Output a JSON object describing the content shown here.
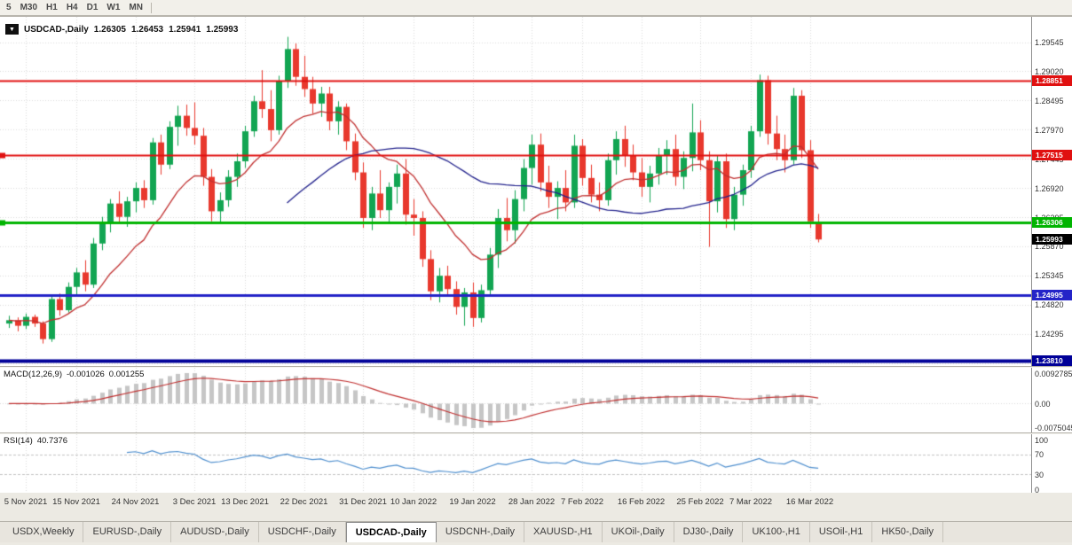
{
  "toolbar": {
    "timeframes": [
      "5",
      "M30",
      "H1",
      "H4",
      "D1",
      "W1",
      "MN"
    ]
  },
  "chart": {
    "info": {
      "symbol": "USDCAD-,Daily",
      "open": "1.26305",
      "high": "1.26453",
      "low": "1.25941",
      "close": "1.25993"
    },
    "price_axis_labels": [
      "1.29545",
      "1.29020",
      "1.28495",
      "1.27970",
      "1.27445",
      "1.26920",
      "1.26395",
      "1.25870",
      "1.25345",
      "1.24820",
      "1.24295",
      "1.23770"
    ],
    "hlines": [
      {
        "value": 1.28851,
        "label": "1.28851",
        "color": "#e01010",
        "width": 2,
        "handle": false
      },
      {
        "value": 1.27515,
        "label": "1.27515",
        "color": "#e01010",
        "width": 2,
        "handle": true
      },
      {
        "value": 1.26306,
        "label": "1.26306",
        "color": "#00b400",
        "width": 3,
        "handle": true
      },
      {
        "value": 1.24995,
        "label": "1.24995",
        "color": "#2424c8",
        "width": 3,
        "handle": false
      },
      {
        "value": 1.2381,
        "label": "1.23810",
        "color": "#000098",
        "width": 4,
        "handle": false
      }
    ],
    "current_price": {
      "value": 1.25993,
      "label": "1.25993",
      "bg": "#000000"
    },
    "colors": {
      "up": "#12a552",
      "down": "#e8382d",
      "ma_fast": "#c03030",
      "ma_slow": "#22228c",
      "grid": "#dadada"
    }
  },
  "chart_data": {
    "type": "candlestick",
    "title": "USDCAD-,Daily",
    "y_range": [
      1.237,
      1.3
    ],
    "x_labels": [
      {
        "index": 2,
        "label": "5 Nov 2021"
      },
      {
        "index": 8,
        "label": "15 Nov 2021"
      },
      {
        "index": 15,
        "label": "24 Nov 2021"
      },
      {
        "index": 22,
        "label": "3 Dec 2021"
      },
      {
        "index": 28,
        "label": "13 Dec 2021"
      },
      {
        "index": 35,
        "label": "22 Dec 2021"
      },
      {
        "index": 42,
        "label": "31 Dec 2021"
      },
      {
        "index": 48,
        "label": "10 Jan 2022"
      },
      {
        "index": 55,
        "label": "19 Jan 2022"
      },
      {
        "index": 62,
        "label": "28 Jan 2022"
      },
      {
        "index": 68,
        "label": "7 Feb 2022"
      },
      {
        "index": 75,
        "label": "16 Feb 2022"
      },
      {
        "index": 82,
        "label": "25 Feb 2022"
      },
      {
        "index": 88,
        "label": "7 Mar 2022"
      },
      {
        "index": 95,
        "label": "16 Mar 2022"
      }
    ],
    "ohlc": [
      [
        1.2448,
        1.2462,
        1.244,
        1.2454
      ],
      [
        1.2454,
        1.2459,
        1.2434,
        1.2444
      ],
      [
        1.2444,
        1.2466,
        1.2438,
        1.246
      ],
      [
        1.246,
        1.2464,
        1.2442,
        1.2448
      ],
      [
        1.2448,
        1.2452,
        1.2412,
        1.242
      ],
      [
        1.242,
        1.25,
        1.2415,
        1.2492
      ],
      [
        1.2492,
        1.2502,
        1.2462,
        1.2472
      ],
      [
        1.2472,
        1.2522,
        1.2468,
        1.2514
      ],
      [
        1.2514,
        1.2548,
        1.25,
        1.254
      ],
      [
        1.254,
        1.2562,
        1.2506,
        1.2518
      ],
      [
        1.2518,
        1.2602,
        1.2512,
        1.2592
      ],
      [
        1.2592,
        1.264,
        1.258,
        1.263
      ],
      [
        1.263,
        1.2672,
        1.2612,
        1.2664
      ],
      [
        1.2664,
        1.2686,
        1.2628,
        1.264
      ],
      [
        1.264,
        1.2676,
        1.2622,
        1.2668
      ],
      [
        1.2668,
        1.2702,
        1.2648,
        1.2692
      ],
      [
        1.2692,
        1.2706,
        1.2656,
        1.267
      ],
      [
        1.267,
        1.2782,
        1.2662,
        1.2774
      ],
      [
        1.2774,
        1.2788,
        1.2716,
        1.2734
      ],
      [
        1.2734,
        1.2812,
        1.2726,
        1.2802
      ],
      [
        1.2802,
        1.284,
        1.2768,
        1.2822
      ],
      [
        1.2822,
        1.2842,
        1.2786,
        1.28
      ],
      [
        1.28,
        1.2846,
        1.277,
        1.2786
      ],
      [
        1.2786,
        1.28,
        1.2696,
        1.2712
      ],
      [
        1.2712,
        1.2726,
        1.2632,
        1.265
      ],
      [
        1.265,
        1.2684,
        1.2628,
        1.267
      ],
      [
        1.267,
        1.2724,
        1.2658,
        1.2712
      ],
      [
        1.2712,
        1.2754,
        1.2694,
        1.274
      ],
      [
        1.274,
        1.2804,
        1.2728,
        1.2794
      ],
      [
        1.2794,
        1.2858,
        1.2784,
        1.2848
      ],
      [
        1.2848,
        1.2904,
        1.2818,
        1.2834
      ],
      [
        1.2834,
        1.2868,
        1.2776,
        1.2796
      ],
      [
        1.2796,
        1.2894,
        1.2788,
        1.2884
      ],
      [
        1.2884,
        1.2964,
        1.2872,
        1.2942
      ],
      [
        1.2942,
        1.2952,
        1.2876,
        1.2892
      ],
      [
        1.2892,
        1.293,
        1.2856,
        1.287
      ],
      [
        1.287,
        1.2892,
        1.2826,
        1.2844
      ],
      [
        1.2844,
        1.2874,
        1.282,
        1.2862
      ],
      [
        1.2862,
        1.2874,
        1.2796,
        1.2812
      ],
      [
        1.2812,
        1.2848,
        1.2788,
        1.2838
      ],
      [
        1.2838,
        1.2844,
        1.276,
        1.2776
      ],
      [
        1.2776,
        1.279,
        1.2706,
        1.272
      ],
      [
        1.272,
        1.2738,
        1.262,
        1.2638
      ],
      [
        1.2638,
        1.2694,
        1.2616,
        1.2682
      ],
      [
        1.2682,
        1.2724,
        1.2638,
        1.2652
      ],
      [
        1.2652,
        1.2702,
        1.2628,
        1.2694
      ],
      [
        1.2694,
        1.2734,
        1.2664,
        1.2718
      ],
      [
        1.2718,
        1.2744,
        1.2626,
        1.2644
      ],
      [
        1.2644,
        1.2672,
        1.2606,
        1.2638
      ],
      [
        1.2638,
        1.265,
        1.255,
        1.2564
      ],
      [
        1.2564,
        1.258,
        1.249,
        1.2506
      ],
      [
        1.2506,
        1.2548,
        1.2486,
        1.2534
      ],
      [
        1.2534,
        1.2552,
        1.2496,
        1.251
      ],
      [
        1.251,
        1.2524,
        1.2464,
        1.2478
      ],
      [
        1.2478,
        1.2512,
        1.2444,
        1.2504
      ],
      [
        1.2504,
        1.2522,
        1.2442,
        1.2458
      ],
      [
        1.2458,
        1.2518,
        1.245,
        1.2508
      ],
      [
        1.2508,
        1.2584,
        1.2498,
        1.2572
      ],
      [
        1.2572,
        1.2654,
        1.2548,
        1.2638
      ],
      [
        1.2638,
        1.2674,
        1.2596,
        1.2616
      ],
      [
        1.2616,
        1.2688,
        1.2592,
        1.2672
      ],
      [
        1.2672,
        1.2744,
        1.265,
        1.2728
      ],
      [
        1.2728,
        1.2788,
        1.2698,
        1.277
      ],
      [
        1.277,
        1.279,
        1.2686,
        1.2702
      ],
      [
        1.2702,
        1.2732,
        1.2656,
        1.2676
      ],
      [
        1.2676,
        1.2704,
        1.2636,
        1.2692
      ],
      [
        1.2692,
        1.2724,
        1.265,
        1.2666
      ],
      [
        1.2666,
        1.2788,
        1.2656,
        1.2768
      ],
      [
        1.2768,
        1.278,
        1.2696,
        1.271
      ],
      [
        1.271,
        1.2734,
        1.2666,
        1.268
      ],
      [
        1.268,
        1.2702,
        1.265,
        1.267
      ],
      [
        1.267,
        1.2754,
        1.266,
        1.2742
      ],
      [
        1.2742,
        1.2794,
        1.2716,
        1.278
      ],
      [
        1.278,
        1.2804,
        1.273,
        1.275
      ],
      [
        1.275,
        1.277,
        1.2706,
        1.272
      ],
      [
        1.272,
        1.2746,
        1.2676,
        1.2694
      ],
      [
        1.2694,
        1.2732,
        1.2666,
        1.2718
      ],
      [
        1.2718,
        1.2764,
        1.2698,
        1.275
      ],
      [
        1.275,
        1.2778,
        1.2716,
        1.2762
      ],
      [
        1.2762,
        1.2788,
        1.2696,
        1.2712
      ],
      [
        1.2712,
        1.2758,
        1.269,
        1.2746
      ],
      [
        1.2746,
        1.2844,
        1.2722,
        1.2792
      ],
      [
        1.2792,
        1.2814,
        1.2724,
        1.2742
      ],
      [
        1.2742,
        1.2758,
        1.2586,
        1.2668
      ],
      [
        1.2668,
        1.275,
        1.2648,
        1.274
      ],
      [
        1.274,
        1.2754,
        1.262,
        1.2636
      ],
      [
        1.2636,
        1.2694,
        1.2616,
        1.268
      ],
      [
        1.268,
        1.2734,
        1.266,
        1.2724
      ],
      [
        1.2724,
        1.2804,
        1.271,
        1.2794
      ],
      [
        1.2794,
        1.2896,
        1.2784,
        1.2886
      ],
      [
        1.2886,
        1.2894,
        1.277,
        1.279
      ],
      [
        1.279,
        1.2822,
        1.2742,
        1.2762
      ],
      [
        1.2762,
        1.2788,
        1.272,
        1.2742
      ],
      [
        1.2742,
        1.2872,
        1.2734,
        1.2858
      ],
      [
        1.2858,
        1.2868,
        1.2746,
        1.276
      ],
      [
        1.276,
        1.2778,
        1.262,
        1.2632
      ],
      [
        1.26305,
        1.26453,
        1.25941,
        1.25993
      ]
    ],
    "overlays": [
      {
        "name": "ma-fast",
        "kind": "ema",
        "period": 13
      },
      {
        "name": "ma-slow",
        "kind": "sma",
        "period": 34
      }
    ]
  },
  "macd": {
    "name": "MACD(12,26,9)",
    "value_main": "-0.001026",
    "value_signal": "0.001255",
    "axis_labels": [
      "0.0092785",
      "0.00",
      "-0.0075045"
    ],
    "colors": {
      "hist": "#c6c6c6",
      "signal": "#c03030"
    }
  },
  "rsi": {
    "name": "RSI(14)",
    "value": "40.7376",
    "axis_labels": [
      "100",
      "70",
      "30",
      "0"
    ],
    "levels": [
      70,
      30
    ],
    "color": "#4f8fce"
  },
  "tabs": [
    {
      "label": "USDX,Weekly",
      "active": false
    },
    {
      "label": "EURUSD-,Daily",
      "active": false
    },
    {
      "label": "AUDUSD-,Daily",
      "active": false
    },
    {
      "label": "USDCHF-,Daily",
      "active": false
    },
    {
      "label": "USDCAD-,Daily",
      "active": true
    },
    {
      "label": "USDCNH-,Daily",
      "active": false
    },
    {
      "label": "XAUUSD-,H1",
      "active": false
    },
    {
      "label": "UKOil-,Daily",
      "active": false
    },
    {
      "label": "DJ30-,Daily",
      "active": false
    },
    {
      "label": "UK100-,H1",
      "active": false
    },
    {
      "label": "USOil-,H1",
      "active": false
    },
    {
      "label": "HK50-,Daily",
      "active": false
    }
  ]
}
